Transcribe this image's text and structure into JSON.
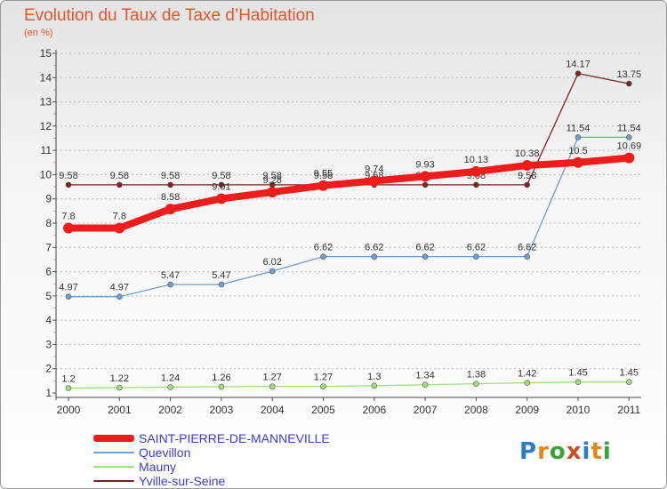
{
  "header": {
    "title": "Evolution du Taux de Taxe d’Habitation",
    "unit": "(en %)"
  },
  "chart_data": {
    "type": "line",
    "title": "Evolution du Taux de Taxe d’Habitation",
    "ylabel": "(en %)",
    "xlabel": "",
    "ylim": [
      1,
      15
    ],
    "yticks": [
      1,
      2,
      3,
      4,
      5,
      6,
      7,
      8,
      9,
      10,
      11,
      12,
      13,
      14,
      15
    ],
    "grid": "horizontal dashed",
    "legend_position": "bottom-left",
    "categories": [
      "2000",
      "2001",
      "2002",
      "2003",
      "2004",
      "2005",
      "2006",
      "2007",
      "2008",
      "2009",
      "2010",
      "2011"
    ],
    "series": [
      {
        "name": "Yville-sur-Seine",
        "color": "#7b2423",
        "values": [
          9.58,
          9.58,
          9.58,
          9.58,
          9.58,
          9.58,
          9.58,
          9.58,
          9.58,
          9.58,
          14.17,
          13.75
        ]
      },
      {
        "name": "Quevillon",
        "color": "#6f9fd0",
        "values": [
          4.97,
          4.97,
          5.47,
          5.47,
          6.02,
          6.62,
          6.62,
          6.62,
          6.62,
          6.62,
          11.54,
          11.54
        ]
      },
      {
        "name": "Mauny",
        "color": "#9fe27a",
        "values": [
          1.2,
          1.22,
          1.24,
          1.26,
          1.27,
          1.27,
          1.3,
          1.34,
          1.38,
          1.42,
          1.45,
          1.45
        ]
      },
      {
        "name": "SAINT-PIERRE-DE-MANNEVILLE",
        "color": "#ef1c1c",
        "values": [
          7.8,
          7.8,
          8.58,
          9.01,
          9.28,
          9.55,
          9.74,
          9.93,
          10.13,
          10.38,
          10.5,
          10.69
        ]
      }
    ]
  },
  "legend": {
    "items": [
      {
        "name": "SAINT-PIERRE-DE-MANNEVILLE",
        "color": "#ef1c1c"
      },
      {
        "name": "Quevillon",
        "color": "#6f9fd0"
      },
      {
        "name": "Mauny",
        "color": "#9fe27a"
      },
      {
        "name": "Yville-sur-Seine",
        "color": "#7b2423"
      }
    ],
    "label_color": "#3c3cd8"
  },
  "logo": {
    "text": "Proxiti",
    "letter_colors": [
      "#2a7fc8",
      "#e08a1e",
      "#3aa43a",
      "#d24b1e",
      "#2a7fc8",
      "#e08a1e",
      "#3aa43a"
    ]
  }
}
